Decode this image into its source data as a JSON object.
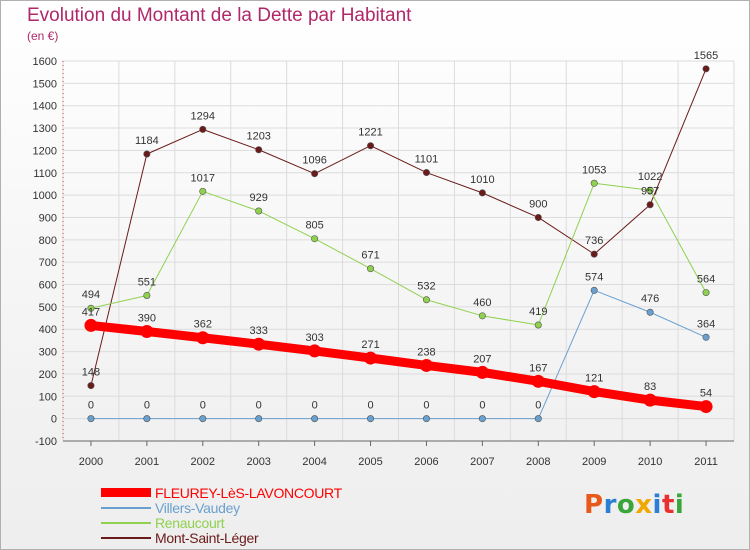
{
  "title": "Evolution du Montant de la Dette par Habitant",
  "unit_label": "(en €)",
  "logo": {
    "text": "Proxiti",
    "colors": [
      "#e85a1b",
      "#2a7fd4",
      "#3aa53a",
      "#f0a800",
      "#2a7fd4",
      "#e83030",
      "#3aa53a"
    ]
  },
  "chart_data": {
    "type": "line",
    "x": [
      "2000",
      "2001",
      "2002",
      "2003",
      "2004",
      "2005",
      "2006",
      "2007",
      "2008",
      "2009",
      "2010",
      "2011"
    ],
    "ylim": [
      -100,
      1600
    ],
    "yticks": [
      -100,
      0,
      100,
      200,
      300,
      400,
      500,
      600,
      700,
      800,
      900,
      1000,
      1100,
      1200,
      1300,
      1400,
      1500,
      1600
    ],
    "grid": true,
    "legend_position": "bottom-left",
    "series": [
      {
        "name": "Mont-Saint-Léger",
        "color": "#6b1a1a",
        "width": 1,
        "values": [
          148,
          1184,
          1294,
          1203,
          1096,
          1221,
          1101,
          1010,
          900,
          736,
          957,
          1565
        ]
      },
      {
        "name": "Renaucourt",
        "color": "#8fd14f",
        "width": 1,
        "values": [
          494,
          551,
          1017,
          929,
          805,
          671,
          532,
          460,
          419,
          1053,
          1022,
          564
        ]
      },
      {
        "name": "Villers-Vaudey",
        "color": "#6aa0cf",
        "width": 1,
        "values": [
          0,
          0,
          0,
          0,
          0,
          0,
          0,
          0,
          0,
          574,
          476,
          364
        ]
      },
      {
        "name": "FLEUREY-LèS-LAVONCOURT",
        "color": "#ff0000",
        "width": 9,
        "values": [
          417,
          390,
          362,
          333,
          303,
          271,
          238,
          207,
          167,
          121,
          83,
          54
        ]
      }
    ],
    "legend_order": [
      "FLEUREY-LèS-LAVONCOURT",
      "Villers-Vaudey",
      "Renaucourt",
      "Mont-Saint-Léger"
    ]
  }
}
